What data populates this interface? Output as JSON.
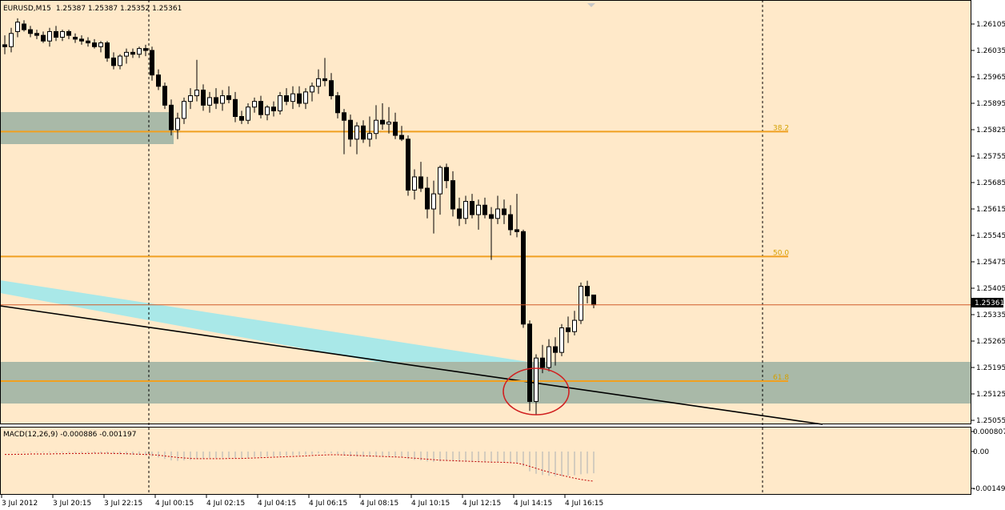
{
  "window": {
    "title": "EURUSD,M15",
    "ohlc": "1.25387 1.25387 1.25352 1.25361"
  },
  "colors": {
    "background": "#ffe9c9",
    "frame": "#000000",
    "bull_body": "#ffffff",
    "bear_body": "#000000",
    "fib_line": "#f0a020",
    "fib_label": "#d4a000",
    "zone": "#a9b9a8",
    "channel": "#a9e8e8",
    "trendline": "#000000",
    "price_line": "#d05a2a",
    "circle": "#d02020",
    "macd_hist": "#b8b8b8",
    "macd_signal": "#c00000"
  },
  "y_axis": {
    "ticks": [
      "1.26105",
      "1.26035",
      "1.25965",
      "1.25895",
      "1.25825",
      "1.25755",
      "1.25685",
      "1.25615",
      "1.25545",
      "1.25475",
      "1.25405",
      "1.25335",
      "1.25265",
      "1.25195",
      "1.25125",
      "1.25055"
    ],
    "current_price": "1.25361"
  },
  "macd": {
    "label": "MACD(12,26,9) -0.000886 -0.001197",
    "ticks": [
      "0.000807",
      "0.00",
      "-0.00149"
    ]
  },
  "x_axis": {
    "labels": [
      "3 Jul 2012",
      "3 Jul 20:15",
      "3 Jul 22:15",
      "4 Jul 00:15",
      "4 Jul 02:15",
      "4 Jul 04:15",
      "4 Jul 06:15",
      "4 Jul 08:15",
      "4 Jul 10:15",
      "4 Jul 12:15",
      "4 Jul 14:15",
      "4 Jul 16:15"
    ]
  },
  "fib_levels": [
    {
      "label": "38.2",
      "price": 1.2582
    },
    {
      "label": "50.0",
      "price": 1.25489
    },
    {
      "label": "61.8",
      "price": 1.25159
    }
  ],
  "chart_data": {
    "type": "candlestick",
    "symbol": "EURUSD",
    "timeframe": "M15",
    "ylim": [
      1.2504,
      1.2613
    ],
    "macd_ylim": [
      -0.00149,
      0.000807
    ],
    "candles": [
      {
        "o": 1.2605,
        "h": 1.26075,
        "l": 1.26025,
        "c": 1.26045
      },
      {
        "o": 1.26045,
        "h": 1.26095,
        "l": 1.2603,
        "c": 1.2608
      },
      {
        "o": 1.26085,
        "h": 1.2612,
        "l": 1.2607,
        "c": 1.2611
      },
      {
        "o": 1.26105,
        "h": 1.26115,
        "l": 1.26085,
        "c": 1.2609
      },
      {
        "o": 1.2609,
        "h": 1.261,
        "l": 1.2607,
        "c": 1.2608
      },
      {
        "o": 1.2608,
        "h": 1.2609,
        "l": 1.26065,
        "c": 1.26075
      },
      {
        "o": 1.26075,
        "h": 1.26085,
        "l": 1.26055,
        "c": 1.2606
      },
      {
        "o": 1.2606,
        "h": 1.26095,
        "l": 1.26045,
        "c": 1.26085
      },
      {
        "o": 1.26085,
        "h": 1.261,
        "l": 1.2606,
        "c": 1.2607
      },
      {
        "o": 1.2607,
        "h": 1.2609,
        "l": 1.2606,
        "c": 1.26085
      },
      {
        "o": 1.26085,
        "h": 1.2609,
        "l": 1.26065,
        "c": 1.26075
      },
      {
        "o": 1.2607,
        "h": 1.2608,
        "l": 1.26055,
        "c": 1.26065
      },
      {
        "o": 1.26065,
        "h": 1.26075,
        "l": 1.2605,
        "c": 1.2606
      },
      {
        "o": 1.2606,
        "h": 1.2607,
        "l": 1.26045,
        "c": 1.26055
      },
      {
        "o": 1.26055,
        "h": 1.26065,
        "l": 1.2604,
        "c": 1.26045
      },
      {
        "o": 1.26045,
        "h": 1.2606,
        "l": 1.2603,
        "c": 1.26055
      },
      {
        "o": 1.26055,
        "h": 1.2606,
        "l": 1.26005,
        "c": 1.26015
      },
      {
        "o": 1.26015,
        "h": 1.2603,
        "l": 1.25985,
        "c": 1.25995
      },
      {
        "o": 1.25995,
        "h": 1.26025,
        "l": 1.25985,
        "c": 1.2602
      },
      {
        "o": 1.2602,
        "h": 1.2604,
        "l": 1.26,
        "c": 1.2603
      },
      {
        "o": 1.2603,
        "h": 1.2604,
        "l": 1.26015,
        "c": 1.26025
      },
      {
        "o": 1.26025,
        "h": 1.26045,
        "l": 1.26015,
        "c": 1.2604
      },
      {
        "o": 1.2604,
        "h": 1.2605,
        "l": 1.2602,
        "c": 1.26035
      },
      {
        "o": 1.26035,
        "h": 1.26045,
        "l": 1.25955,
        "c": 1.2597
      },
      {
        "o": 1.2597,
        "h": 1.25985,
        "l": 1.2593,
        "c": 1.2594
      },
      {
        "o": 1.2594,
        "h": 1.2595,
        "l": 1.2588,
        "c": 1.2589
      },
      {
        "o": 1.2589,
        "h": 1.25905,
        "l": 1.2581,
        "c": 1.25825
      },
      {
        "o": 1.25825,
        "h": 1.2587,
        "l": 1.258,
        "c": 1.25855
      },
      {
        "o": 1.25855,
        "h": 1.2591,
        "l": 1.2584,
        "c": 1.259
      },
      {
        "o": 1.259,
        "h": 1.25935,
        "l": 1.2588,
        "c": 1.25915
      },
      {
        "o": 1.25915,
        "h": 1.2601,
        "l": 1.259,
        "c": 1.2593
      },
      {
        "o": 1.2593,
        "h": 1.25945,
        "l": 1.25875,
        "c": 1.2589
      },
      {
        "o": 1.2589,
        "h": 1.25925,
        "l": 1.2587,
        "c": 1.2591
      },
      {
        "o": 1.2591,
        "h": 1.25935,
        "l": 1.2588,
        "c": 1.25895
      },
      {
        "o": 1.25895,
        "h": 1.2593,
        "l": 1.25875,
        "c": 1.25915
      },
      {
        "o": 1.25915,
        "h": 1.2594,
        "l": 1.25895,
        "c": 1.25905
      },
      {
        "o": 1.25905,
        "h": 1.25925,
        "l": 1.25845,
        "c": 1.2586
      },
      {
        "o": 1.2586,
        "h": 1.25875,
        "l": 1.2584,
        "c": 1.2585
      },
      {
        "o": 1.2585,
        "h": 1.25895,
        "l": 1.2584,
        "c": 1.25885
      },
      {
        "o": 1.25885,
        "h": 1.2591,
        "l": 1.2587,
        "c": 1.259
      },
      {
        "o": 1.259,
        "h": 1.25915,
        "l": 1.25855,
        "c": 1.25865
      },
      {
        "o": 1.25865,
        "h": 1.2589,
        "l": 1.2585,
        "c": 1.25885
      },
      {
        "o": 1.25885,
        "h": 1.259,
        "l": 1.2586,
        "c": 1.25875
      },
      {
        "o": 1.25875,
        "h": 1.25925,
        "l": 1.25865,
        "c": 1.25915
      },
      {
        "o": 1.25915,
        "h": 1.25935,
        "l": 1.2589,
        "c": 1.259
      },
      {
        "o": 1.259,
        "h": 1.2594,
        "l": 1.2588,
        "c": 1.2592
      },
      {
        "o": 1.2592,
        "h": 1.2594,
        "l": 1.25885,
        "c": 1.25895
      },
      {
        "o": 1.25895,
        "h": 1.25935,
        "l": 1.2588,
        "c": 1.25925
      },
      {
        "o": 1.25925,
        "h": 1.2595,
        "l": 1.259,
        "c": 1.2594
      },
      {
        "o": 1.2594,
        "h": 1.25985,
        "l": 1.2592,
        "c": 1.2596
      },
      {
        "o": 1.2596,
        "h": 1.26015,
        "l": 1.2594,
        "c": 1.25955
      },
      {
        "o": 1.25955,
        "h": 1.25975,
        "l": 1.25905,
        "c": 1.25915
      },
      {
        "o": 1.25915,
        "h": 1.25925,
        "l": 1.25855,
        "c": 1.2587
      },
      {
        "o": 1.2587,
        "h": 1.2588,
        "l": 1.2576,
        "c": 1.2585
      },
      {
        "o": 1.2585,
        "h": 1.25865,
        "l": 1.2578,
        "c": 1.258
      },
      {
        "o": 1.258,
        "h": 1.25845,
        "l": 1.2576,
        "c": 1.25835
      },
      {
        "o": 1.25835,
        "h": 1.2585,
        "l": 1.2579,
        "c": 1.258
      },
      {
        "o": 1.258,
        "h": 1.2586,
        "l": 1.2578,
        "c": 1.25815
      },
      {
        "o": 1.25815,
        "h": 1.2589,
        "l": 1.258,
        "c": 1.2585
      },
      {
        "o": 1.2585,
        "h": 1.25895,
        "l": 1.25825,
        "c": 1.2584
      },
      {
        "o": 1.2584,
        "h": 1.25885,
        "l": 1.25815,
        "c": 1.25845
      },
      {
        "o": 1.25845,
        "h": 1.2587,
        "l": 1.258,
        "c": 1.2581
      },
      {
        "o": 1.2581,
        "h": 1.25835,
        "l": 1.25795,
        "c": 1.258
      },
      {
        "o": 1.258,
        "h": 1.2581,
        "l": 1.2565,
        "c": 1.25665
      },
      {
        "o": 1.25665,
        "h": 1.2572,
        "l": 1.2564,
        "c": 1.257
      },
      {
        "o": 1.257,
        "h": 1.2574,
        "l": 1.2566,
        "c": 1.2567
      },
      {
        "o": 1.2567,
        "h": 1.257,
        "l": 1.2559,
        "c": 1.25615
      },
      {
        "o": 1.25615,
        "h": 1.2569,
        "l": 1.2555,
        "c": 1.25655
      },
      {
        "o": 1.25655,
        "h": 1.2573,
        "l": 1.256,
        "c": 1.25725
      },
      {
        "o": 1.25725,
        "h": 1.25735,
        "l": 1.2567,
        "c": 1.2569
      },
      {
        "o": 1.2569,
        "h": 1.25715,
        "l": 1.25595,
        "c": 1.25615
      },
      {
        "o": 1.25615,
        "h": 1.25645,
        "l": 1.2557,
        "c": 1.2559
      },
      {
        "o": 1.2559,
        "h": 1.2565,
        "l": 1.25575,
        "c": 1.25635
      },
      {
        "o": 1.25635,
        "h": 1.25655,
        "l": 1.2559,
        "c": 1.256
      },
      {
        "o": 1.256,
        "h": 1.2564,
        "l": 1.2556,
        "c": 1.25625
      },
      {
        "o": 1.25625,
        "h": 1.25645,
        "l": 1.2559,
        "c": 1.256
      },
      {
        "o": 1.256,
        "h": 1.2562,
        "l": 1.2548,
        "c": 1.2559
      },
      {
        "o": 1.2559,
        "h": 1.2565,
        "l": 1.25575,
        "c": 1.25615
      },
      {
        "o": 1.25615,
        "h": 1.2564,
        "l": 1.25575,
        "c": 1.256
      },
      {
        "o": 1.256,
        "h": 1.25625,
        "l": 1.25545,
        "c": 1.2556
      },
      {
        "o": 1.2556,
        "h": 1.25655,
        "l": 1.2554,
        "c": 1.25555
      },
      {
        "o": 1.25555,
        "h": 1.2556,
        "l": 1.253,
        "c": 1.2531
      },
      {
        "o": 1.2531,
        "h": 1.2532,
        "l": 1.2508,
        "c": 1.25105
      },
      {
        "o": 1.25105,
        "h": 1.2523,
        "l": 1.2507,
        "c": 1.2522
      },
      {
        "o": 1.2522,
        "h": 1.25255,
        "l": 1.2518,
        "c": 1.25195
      },
      {
        "o": 1.25195,
        "h": 1.2527,
        "l": 1.25185,
        "c": 1.2525
      },
      {
        "o": 1.2525,
        "h": 1.25275,
        "l": 1.252,
        "c": 1.25235
      },
      {
        "o": 1.25235,
        "h": 1.2531,
        "l": 1.25225,
        "c": 1.253
      },
      {
        "o": 1.253,
        "h": 1.2533,
        "l": 1.2526,
        "c": 1.2529
      },
      {
        "o": 1.2529,
        "h": 1.25345,
        "l": 1.2528,
        "c": 1.2532
      },
      {
        "o": 1.2532,
        "h": 1.2542,
        "l": 1.2531,
        "c": 1.2541
      },
      {
        "o": 1.2541,
        "h": 1.25425,
        "l": 1.25365,
        "c": 1.25385
      },
      {
        "o": 1.25387,
        "h": 1.25387,
        "l": 1.25352,
        "c": 1.25361
      }
    ],
    "macd_hist": [
      0,
      -2e-05,
      -3e-05,
      -3e-05,
      -3e-05,
      -3e-05,
      -3e-05,
      -4e-05,
      -4e-05,
      -4e-05,
      -4e-05,
      -5e-05,
      -5e-05,
      -5e-05,
      -6e-05,
      -6e-05,
      -8e-05,
      -0.0001,
      -0.00011,
      -0.00012,
      -0.00013,
      -0.00014,
      -0.00015,
      -0.00019,
      -0.00024,
      -0.0003,
      -0.00036,
      -0.00038,
      -0.00036,
      -0.00034,
      -0.0003,
      -0.00028,
      -0.00026,
      -0.00026,
      -0.00025,
      -0.00025,
      -0.00026,
      -0.00027,
      -0.00025,
      -0.00022,
      -0.00022,
      -0.0002,
      -0.0002,
      -0.00018,
      -0.00017,
      -0.00015,
      -0.00015,
      -0.00013,
      -0.00011,
      -8e-05,
      -6e-05,
      -7e-05,
      -0.0001,
      -0.00016,
      -0.0002,
      -0.0002,
      -0.00022,
      -0.00022,
      -0.0002,
      -0.0002,
      -0.0002,
      -0.00021,
      -0.00022,
      -0.0003,
      -0.00034,
      -0.00036,
      -0.0004,
      -0.00042,
      -0.0004,
      -0.00038,
      -0.0004,
      -0.00042,
      -0.00042,
      -0.00043,
      -0.00043,
      -0.00044,
      -0.00044,
      -0.00043,
      -0.00043,
      -0.00044,
      -0.00045,
      -0.0006,
      -0.0008,
      -0.0009,
      -0.00095,
      -0.00098,
      -0.001,
      -0.001,
      -0.00098,
      -0.00096,
      -0.00092,
      -0.00089,
      -0.00088
    ],
    "macd_signal": [
      -0.00012,
      -0.00012,
      -0.00011,
      -0.00011,
      -0.0001,
      -0.0001,
      -0.0001,
      -0.0001,
      -9e-05,
      -9e-05,
      -8e-05,
      -8e-05,
      -8e-05,
      -8e-05,
      -7e-05,
      -7e-05,
      -7e-05,
      -8e-05,
      -8e-05,
      -9e-05,
      -0.0001,
      -0.00011,
      -0.00012,
      -0.00013,
      -0.00015,
      -0.00018,
      -0.00021,
      -0.00024,
      -0.00026,
      -0.00028,
      -0.00029,
      -0.00029,
      -0.00029,
      -0.00029,
      -0.00029,
      -0.00028,
      -0.00028,
      -0.00028,
      -0.00027,
      -0.00026,
      -0.00025,
      -0.00024,
      -0.00023,
      -0.00022,
      -0.00021,
      -0.0002,
      -0.00019,
      -0.00018,
      -0.00016,
      -0.00015,
      -0.00014,
      -0.00013,
      -0.00013,
      -0.00014,
      -0.00015,
      -0.00016,
      -0.00017,
      -0.00018,
      -0.00019,
      -0.0002,
      -0.00021,
      -0.00022,
      -0.00023,
      -0.00025,
      -0.00027,
      -0.00029,
      -0.00031,
      -0.00033,
      -0.00035,
      -0.00036,
      -0.00037,
      -0.00038,
      -0.00039,
      -0.0004,
      -0.00041,
      -0.00042,
      -0.00043,
      -0.00043,
      -0.00044,
      -0.00045,
      -0.00047,
      -0.00052,
      -0.0006,
      -0.00068,
      -0.00076,
      -0.00083,
      -0.0009,
      -0.00096,
      -0.00102,
      -0.00108,
      -0.00113,
      -0.00117,
      -0.0012
    ]
  }
}
